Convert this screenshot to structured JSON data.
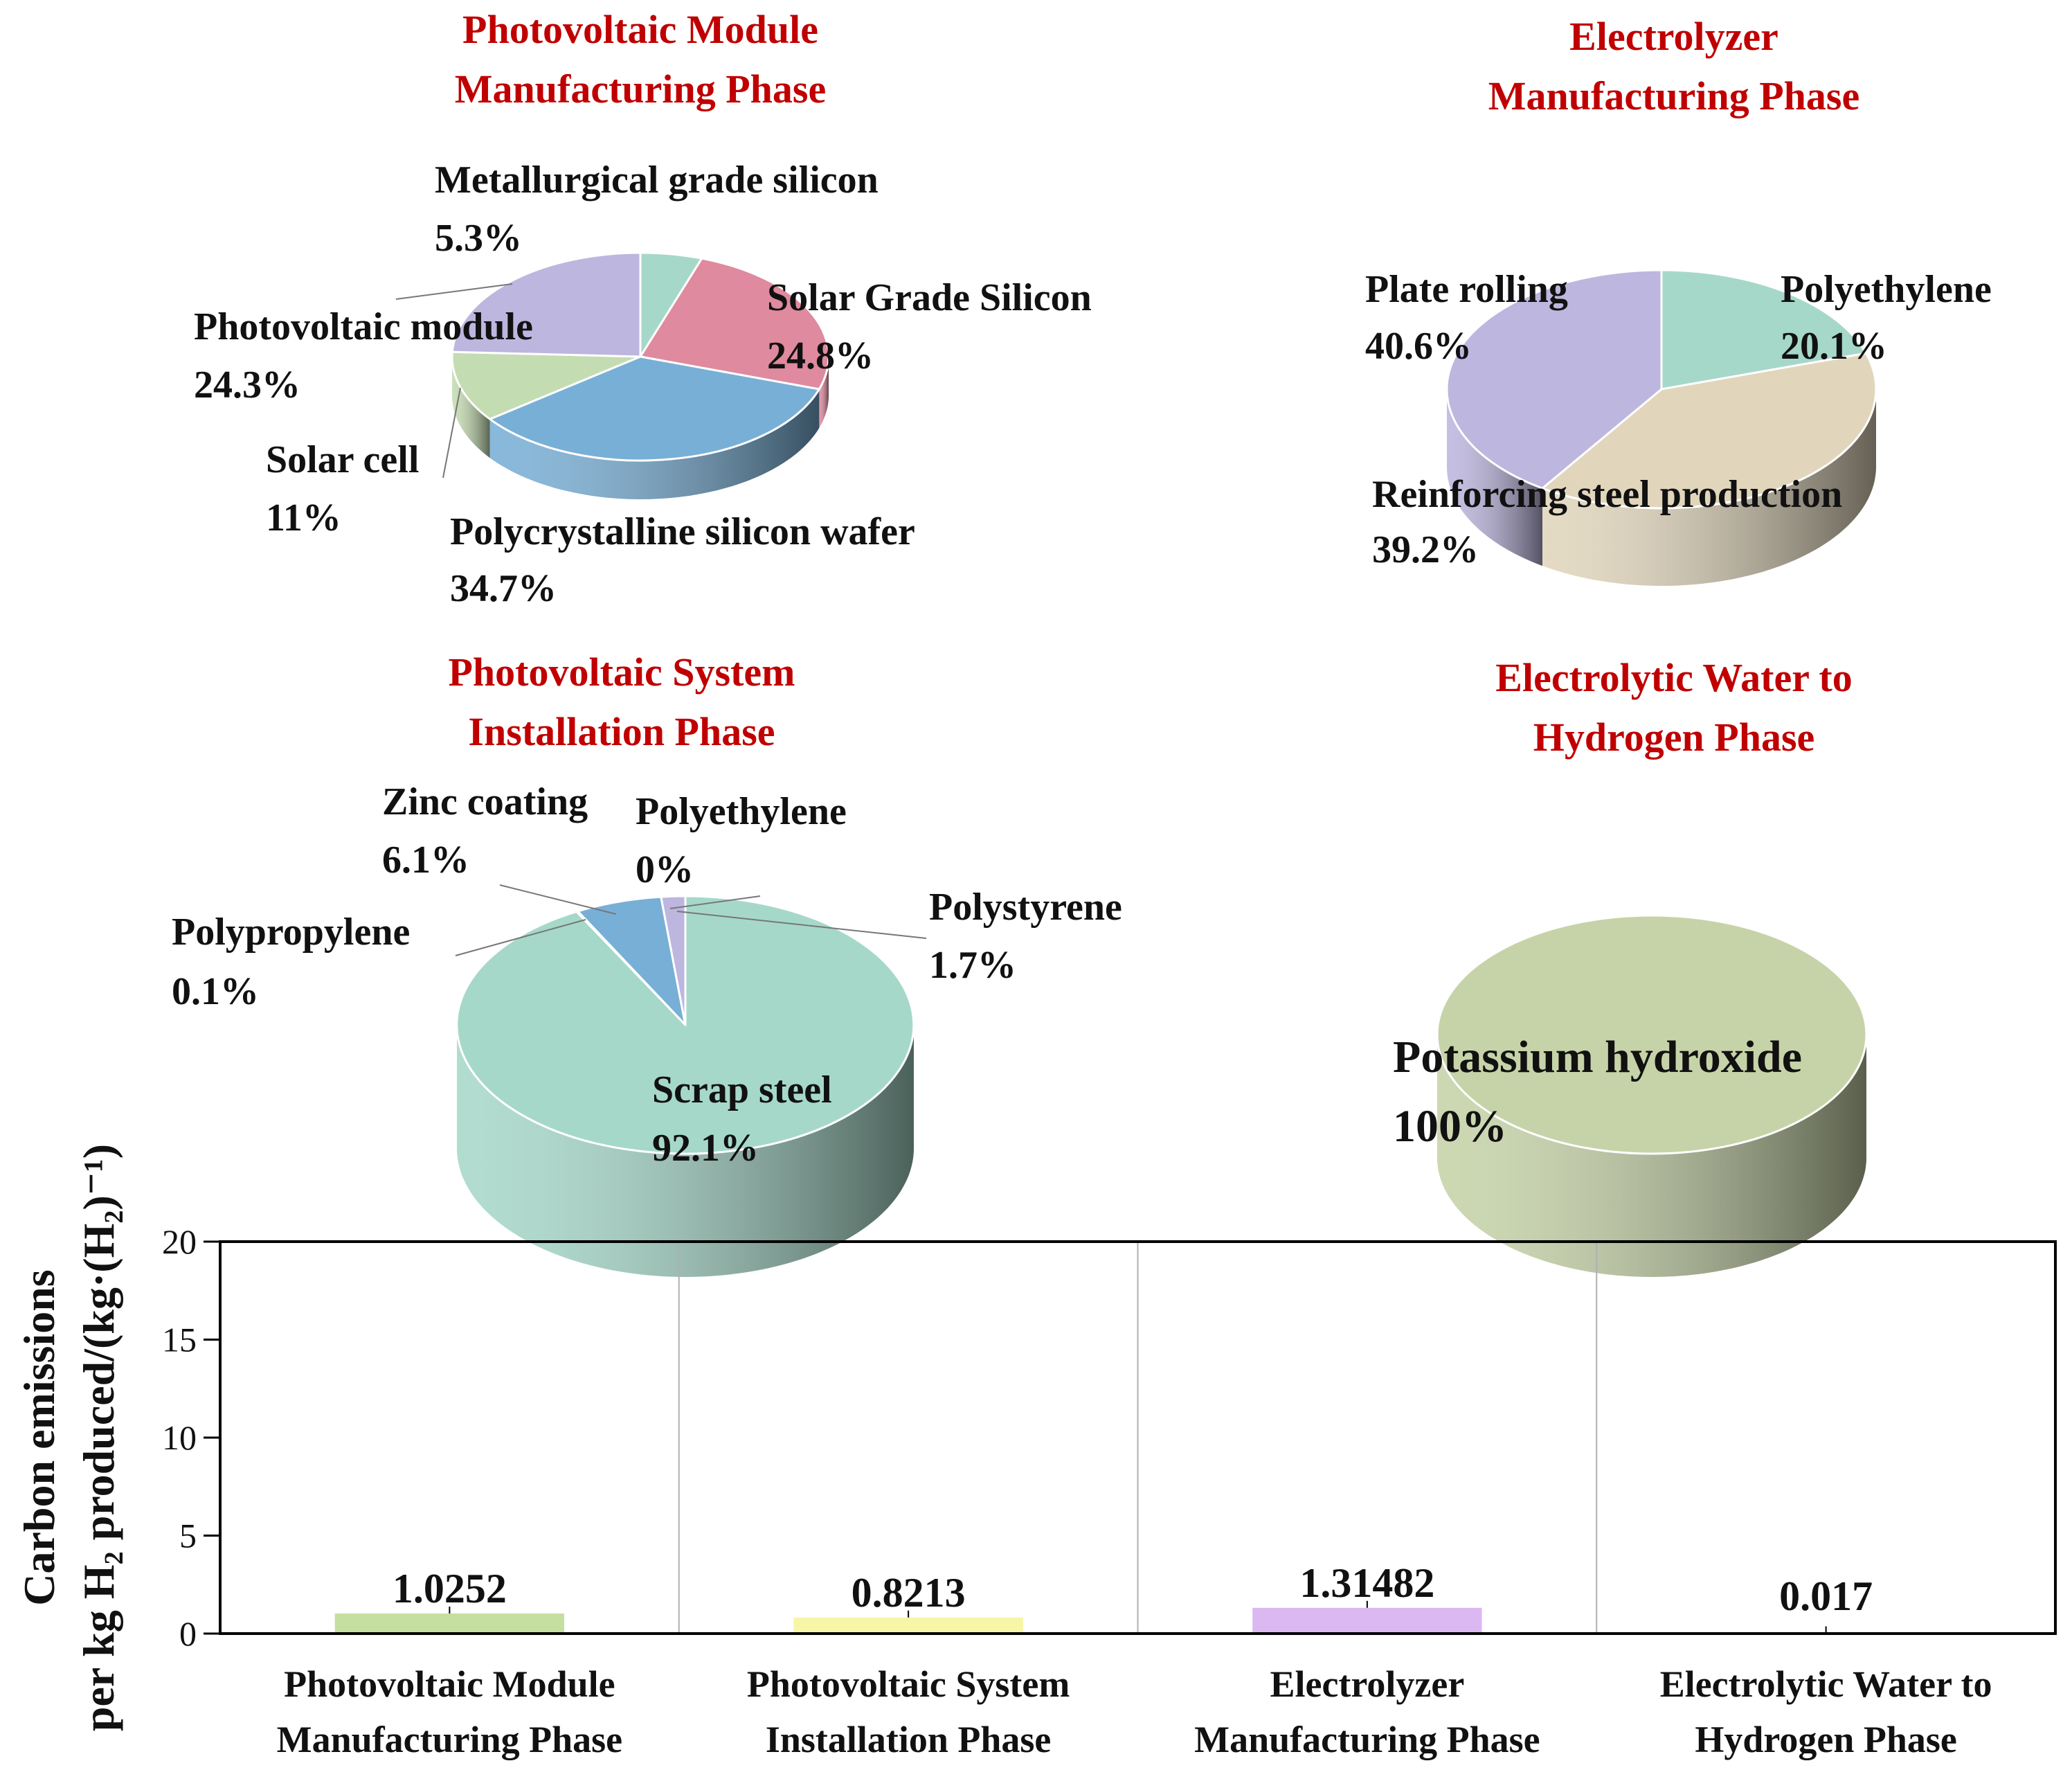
{
  "chart_data": [
    {
      "type": "pie",
      "title": [
        "Photovoltaic Module",
        "Manufacturing Phase"
      ],
      "slices": [
        {
          "label": "Metallurgical grade silicon",
          "value": 5.3,
          "pct": "5.3%",
          "color": "#a6d8c9"
        },
        {
          "label": "Solar Grade Silicon",
          "value": 24.8,
          "pct": "24.8%",
          "color": "#df8a9e"
        },
        {
          "label": "Polycrystalline silicon wafer",
          "value": 34.7,
          "pct": "34.7%",
          "color": "#78afd6"
        },
        {
          "label": "Solar cell",
          "value": 11.0,
          "pct": "11%",
          "color": "#c4dcb2"
        },
        {
          "label": "Photovoltaic module",
          "value": 24.3,
          "pct": "24.3%",
          "color": "#bdb6df"
        }
      ]
    },
    {
      "type": "pie",
      "title": [
        "Electrolyzer",
        "Manufacturing Phase"
      ],
      "slices": [
        {
          "label": "Polyethylene",
          "value": 20.1,
          "pct": "20.1%",
          "color": "#a6d8c9"
        },
        {
          "label": "Reinforcing steel production",
          "value": 39.2,
          "pct": "39.2%",
          "color": "#e1d6bc"
        },
        {
          "label": "Plate rolling",
          "value": 40.6,
          "pct": "40.6%",
          "color": "#bdb6df"
        }
      ]
    },
    {
      "type": "pie",
      "title": [
        "Photovoltaic System",
        "Installation Phase"
      ],
      "slices": [
        {
          "label": "Scrap steel",
          "value": 92.1,
          "pct": "92.1%",
          "color": "#a6d8c9"
        },
        {
          "label": "Polypropylene",
          "value": 0.1,
          "pct": "0.1%",
          "color": "#e1d6bc"
        },
        {
          "label": "Zinc coating",
          "value": 6.1,
          "pct": "6.1%",
          "color": "#78afd6"
        },
        {
          "label": "Polyethylene",
          "value": 0.0,
          "pct": "0%",
          "color": "#dfdfdf"
        },
        {
          "label": "Polystyrene",
          "value": 1.7,
          "pct": "1.7%",
          "color": "#bdb6df"
        }
      ]
    },
    {
      "type": "pie",
      "title": [
        "Electrolytic Water to",
        "Hydrogen Phase"
      ],
      "slices": [
        {
          "label": "Potassium hydroxide",
          "value": 100,
          "pct": "100%",
          "color": "#c6d3a8"
        }
      ]
    },
    {
      "type": "bar",
      "categories": [
        [
          "Photovoltaic Module",
          "Manufacturing Phase"
        ],
        [
          "Photovoltaic System",
          "Installation Phase"
        ],
        [
          "Electrolyzer",
          "Manufacturing Phase"
        ],
        [
          "Electrolytic Water to",
          "Hydrogen Phase"
        ]
      ],
      "values": [
        1.0252,
        0.8213,
        1.31482,
        0.017
      ],
      "value_labels": [
        "1.0252",
        "0.8213",
        "1.31482",
        "0.017"
      ],
      "colors": [
        "#c5dfa1",
        "#f6f6a6",
        "#dcb8f2",
        "#e0e0e0"
      ],
      "ylim": [
        0,
        20
      ],
      "yticks": [
        0,
        5,
        10,
        15,
        20
      ],
      "ylabel_line1": "Carbon emissions",
      "ylabel_line2": "per kg H₂ produced/(kg·(H₂)⁻¹)",
      "xlabel": "",
      "grid": "vertical separators"
    }
  ]
}
